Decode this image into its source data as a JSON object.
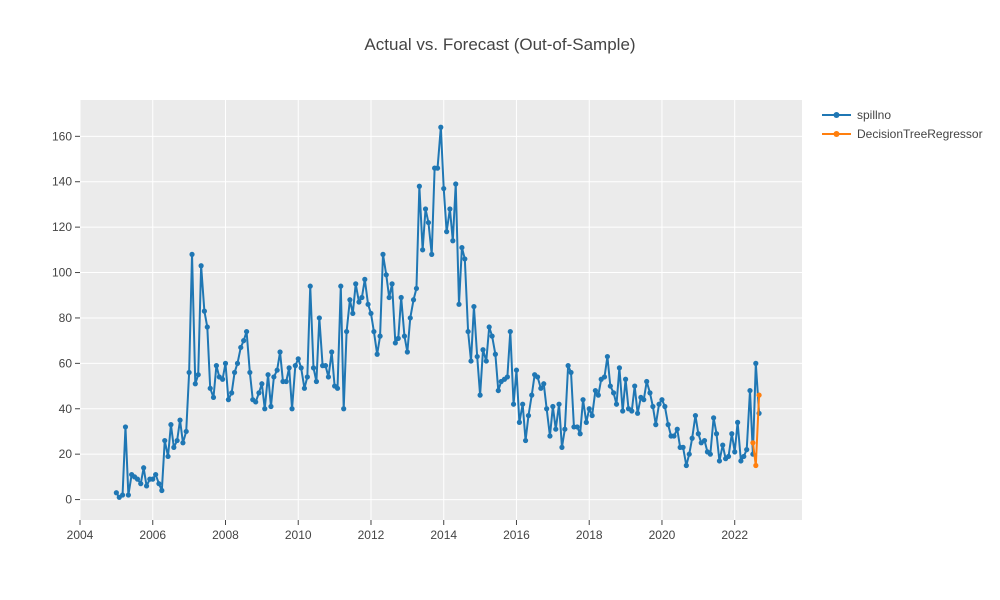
{
  "chart_data": {
    "type": "line",
    "title": "Actual vs. Forecast (Out-of-Sample)",
    "xlabel": "",
    "ylabel": "",
    "xlim": [
      2004.0,
      2023.85
    ],
    "ylim": [
      -9,
      176
    ],
    "x_ticks": [
      2004,
      2006,
      2008,
      2010,
      2012,
      2014,
      2016,
      2018,
      2020,
      2022
    ],
    "x_tick_labels": [
      "2004",
      "2006",
      "2008",
      "2010",
      "2012",
      "2014",
      "2016",
      "2018",
      "2020",
      "2022"
    ],
    "y_ticks": [
      0,
      20,
      40,
      60,
      80,
      100,
      120,
      140,
      160
    ],
    "y_tick_labels": [
      "0",
      "20",
      "40",
      "60",
      "80",
      "100",
      "120",
      "140",
      "160"
    ],
    "grid": true,
    "legend_position": "top-right",
    "series": [
      {
        "name": "spillno",
        "color": "#1f77b4",
        "x": [
          2005.0,
          2005.08,
          2005.17,
          2005.25,
          2005.33,
          2005.42,
          2005.5,
          2005.58,
          2005.67,
          2005.75,
          2005.83,
          2005.92,
          2006.0,
          2006.08,
          2006.17,
          2006.25,
          2006.33,
          2006.42,
          2006.5,
          2006.58,
          2006.67,
          2006.75,
          2006.83,
          2006.92,
          2007.0,
          2007.08,
          2007.17,
          2007.25,
          2007.33,
          2007.42,
          2007.5,
          2007.58,
          2007.67,
          2007.75,
          2007.83,
          2007.92,
          2008.0,
          2008.08,
          2008.17,
          2008.25,
          2008.33,
          2008.42,
          2008.5,
          2008.58,
          2008.67,
          2008.75,
          2008.83,
          2008.92,
          2009.0,
          2009.08,
          2009.17,
          2009.25,
          2009.33,
          2009.42,
          2009.5,
          2009.58,
          2009.67,
          2009.75,
          2009.83,
          2009.92,
          2010.0,
          2010.08,
          2010.17,
          2010.25,
          2010.33,
          2010.42,
          2010.5,
          2010.58,
          2010.67,
          2010.75,
          2010.83,
          2010.92,
          2011.0,
          2011.08,
          2011.17,
          2011.25,
          2011.33,
          2011.42,
          2011.5,
          2011.58,
          2011.67,
          2011.75,
          2011.83,
          2011.92,
          2012.0,
          2012.08,
          2012.17,
          2012.25,
          2012.33,
          2012.42,
          2012.5,
          2012.58,
          2012.67,
          2012.75,
          2012.83,
          2012.92,
          2013.0,
          2013.08,
          2013.17,
          2013.25,
          2013.33,
          2013.42,
          2013.5,
          2013.58,
          2013.67,
          2013.75,
          2013.83,
          2013.92,
          2014.0,
          2014.08,
          2014.17,
          2014.25,
          2014.33,
          2014.42,
          2014.5,
          2014.58,
          2014.67,
          2014.75,
          2014.83,
          2014.92,
          2015.0,
          2015.08,
          2015.17,
          2015.25,
          2015.33,
          2015.42,
          2015.5,
          2015.58,
          2015.67,
          2015.75,
          2015.83,
          2015.92,
          2016.0,
          2016.08,
          2016.17,
          2016.25,
          2016.33,
          2016.42,
          2016.5,
          2016.58,
          2016.67,
          2016.75,
          2016.83,
          2016.92,
          2017.0,
          2017.08,
          2017.17,
          2017.25,
          2017.33,
          2017.42,
          2017.5,
          2017.58,
          2017.67,
          2017.75,
          2017.83,
          2017.92,
          2018.0,
          2018.08,
          2018.17,
          2018.25,
          2018.33,
          2018.42,
          2018.5,
          2018.58,
          2018.67,
          2018.75,
          2018.83,
          2018.92,
          2019.0,
          2019.08,
          2019.17,
          2019.25,
          2019.33,
          2019.42,
          2019.5,
          2019.58,
          2019.67,
          2019.75,
          2019.83,
          2019.92,
          2020.0,
          2020.08,
          2020.17,
          2020.25,
          2020.33,
          2020.42,
          2020.5,
          2020.58,
          2020.67,
          2020.75,
          2020.83,
          2020.92,
          2021.0,
          2021.08,
          2021.17,
          2021.25,
          2021.33,
          2021.42,
          2021.5,
          2021.58,
          2021.67,
          2021.75,
          2021.83,
          2021.92,
          2022.0,
          2022.08,
          2022.17,
          2022.25,
          2022.33,
          2022.42,
          2022.5,
          2022.58,
          2022.67
        ],
        "values": [
          3,
          1,
          2,
          32,
          2,
          11,
          10,
          9,
          7,
          14,
          6,
          9,
          9,
          11,
          7,
          4,
          26,
          19,
          33,
          23,
          26,
          35,
          25,
          30,
          56,
          108,
          51,
          55,
          103,
          83,
          76,
          49,
          45,
          59,
          54,
          53,
          60,
          44,
          47,
          56,
          60,
          67,
          70,
          74,
          56,
          44,
          43,
          47,
          51,
          40,
          55,
          41,
          54,
          57,
          65,
          52,
          52,
          58,
          40,
          59,
          62,
          58,
          49,
          54,
          94,
          58,
          52,
          80,
          59,
          59,
          54,
          65,
          50,
          49,
          94,
          40,
          74,
          88,
          82,
          95,
          87,
          89,
          97,
          86,
          82,
          74,
          64,
          72,
          108,
          99,
          89,
          95,
          69,
          71,
          89,
          72,
          65,
          80,
          88,
          93,
          138,
          110,
          128,
          122,
          108,
          146,
          146,
          164,
          137,
          118,
          128,
          114,
          139,
          86,
          111,
          106,
          74,
          61,
          85,
          63,
          46,
          66,
          61,
          76,
          72,
          64,
          48,
          52,
          53,
          54,
          74,
          42,
          57,
          34,
          42,
          26,
          37,
          46,
          55,
          54,
          49,
          51,
          40,
          28,
          41,
          31,
          42,
          23,
          31,
          59,
          56,
          32,
          32,
          29,
          44,
          34,
          40,
          37,
          48,
          46,
          53,
          54,
          63,
          50,
          47,
          42,
          58,
          39,
          53,
          40,
          39,
          50,
          38,
          45,
          44,
          52,
          47,
          41,
          33,
          42,
          44,
          41,
          33,
          28,
          28,
          31,
          23,
          23,
          15,
          20,
          27,
          37,
          29,
          25,
          26,
          21,
          20,
          36,
          29,
          17,
          24,
          18,
          19,
          29,
          21,
          34,
          17,
          19,
          22,
          48,
          20,
          60,
          38
        ]
      },
      {
        "name": "DecisionTreeRegressor",
        "color": "#ff7f0e",
        "x": [
          2022.5,
          2022.58,
          2022.67
        ],
        "values": [
          25,
          15,
          46
        ]
      }
    ]
  }
}
